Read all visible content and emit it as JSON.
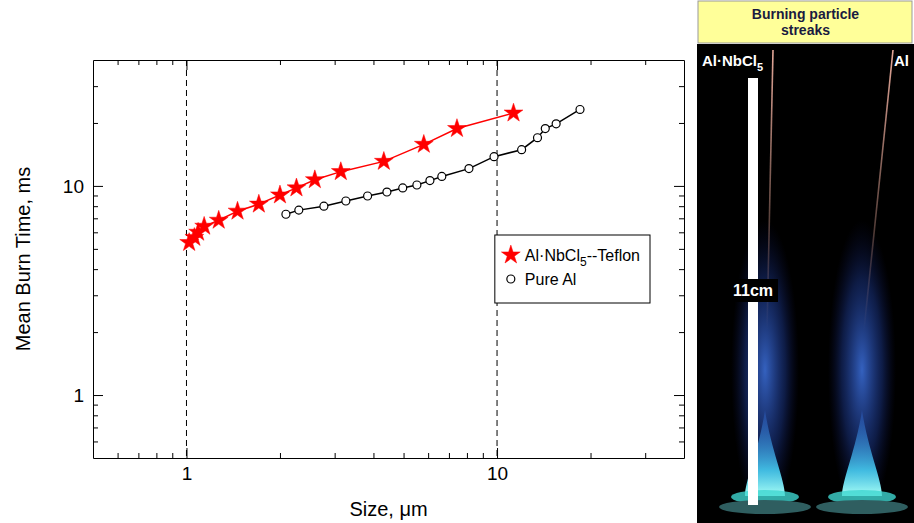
{
  "chart_data": {
    "type": "line",
    "xlabel": "Size, μm",
    "ylabel": "Mean Burn Time, ms",
    "log": true,
    "grid": "x",
    "legend": "right",
    "xlim": [
      0.5,
      40
    ],
    "ylim": [
      0.5,
      40
    ],
    "xticks": [
      1,
      10
    ],
    "yticks": [
      1,
      10
    ],
    "xminorticks": [
      0.6,
      0.7,
      0.8,
      0.9,
      2,
      3,
      4,
      5,
      6,
      7,
      8,
      9,
      20,
      30
    ],
    "yminorticks": [
      0.6,
      0.7,
      0.8,
      0.9,
      2,
      3,
      4,
      5,
      6,
      7,
      8,
      9,
      20,
      30
    ],
    "series": [
      {
        "name": "Al·NbCl5--Teflon",
        "color": "#ff0000",
        "marker": "star",
        "x": [
          1.02,
          1.06,
          1.09,
          1.14,
          1.27,
          1.46,
          1.71,
          2.0,
          2.26,
          2.59,
          3.14,
          4.32,
          5.81,
          7.43,
          11.3
        ],
        "values": [
          5.36,
          5.67,
          6.0,
          6.41,
          6.85,
          7.57,
          8.18,
          9.05,
          9.78,
          10.7,
          11.7,
          13.1,
          15.8,
          18.8,
          22.3
        ]
      },
      {
        "name": "Pure Al",
        "color": "#000000",
        "marker": "circle",
        "x": [
          2.09,
          2.3,
          2.77,
          3.26,
          3.83,
          4.42,
          4.97,
          5.52,
          6.08,
          6.64,
          8.12,
          9.78,
          12.0,
          13.5,
          14.3,
          15.5,
          18.5
        ],
        "values": [
          7.32,
          7.66,
          8.0,
          8.47,
          8.95,
          9.35,
          9.78,
          10.1,
          10.6,
          11.1,
          12.1,
          13.8,
          14.9,
          17.0,
          18.8,
          19.8,
          23.2
        ]
      }
    ]
  },
  "photo": {
    "title": "Burning particle streaks",
    "labels": [
      "Al·NbCl5",
      "Al"
    ],
    "scale_label": "11cm"
  }
}
